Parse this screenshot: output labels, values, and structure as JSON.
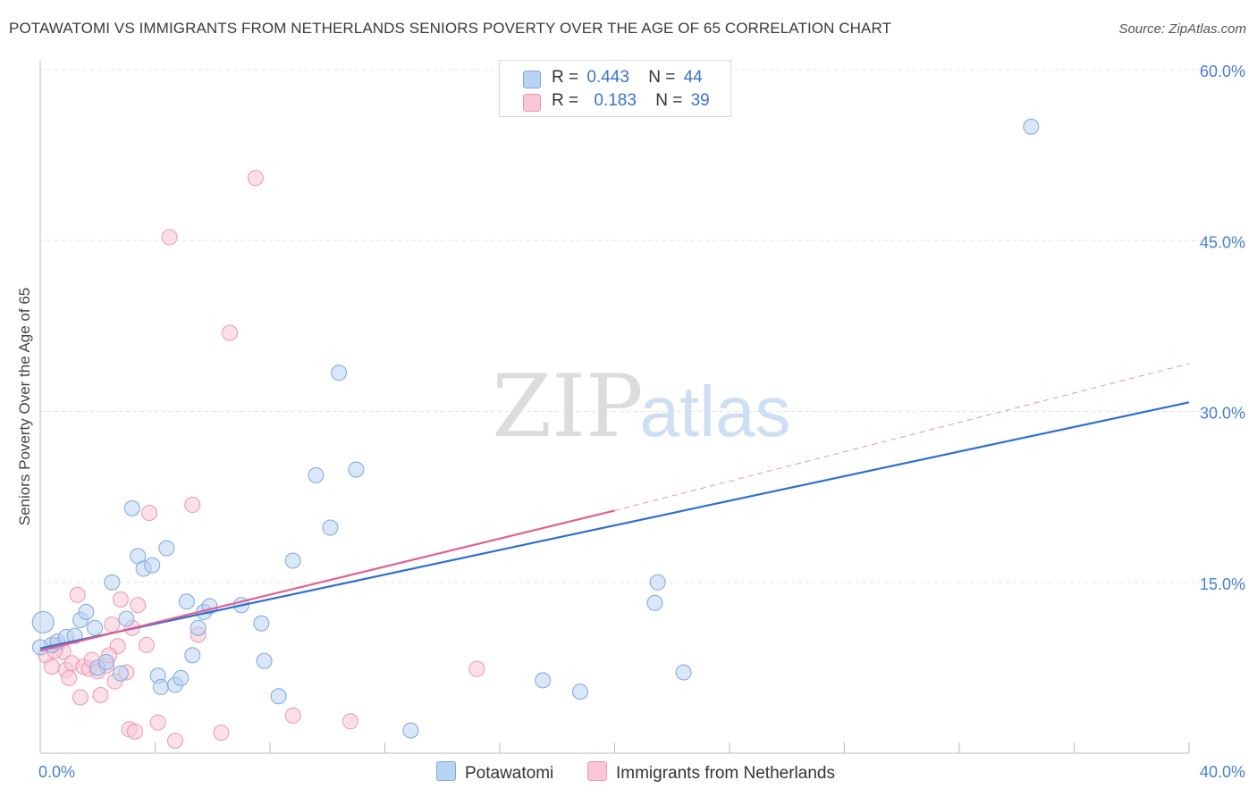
{
  "title": "POTAWATOMI VS IMMIGRANTS FROM NETHERLANDS SENIORS POVERTY OVER THE AGE OF 65 CORRELATION CHART",
  "source": "Source: ZipAtlas.com",
  "watermark": {
    "zip": "ZIP",
    "atlas": "atlas"
  },
  "legend": {
    "rows": [
      {
        "r_label": "R =",
        "r_value": "0.443",
        "n_label": "N =",
        "n_value": "44",
        "color": "#a8c8f0"
      },
      {
        "r_label": "R =",
        "r_value": "0.183",
        "n_label": "N =",
        "n_value": "39",
        "color": "#f7b8cc"
      }
    ]
  },
  "colors": {
    "series1_fill": "#b9d3f3",
    "series1_stroke": "#7fa8dd",
    "series1_line": "#2f6fd0",
    "series2_fill": "#f9c6d6",
    "series2_stroke": "#ee96b2",
    "series2_line": "#e0608e",
    "grid": "#e3e3e3",
    "tick_label": "#4a7fcf"
  },
  "chart_data": {
    "type": "scatter",
    "title": "POTAWATOMI VS IMMIGRANTS FROM NETHERLANDS SENIORS POVERTY OVER THE AGE OF 65 CORRELATION CHART",
    "xlabel": "",
    "ylabel": "Seniors Poverty Over the Age of 65",
    "xlim": [
      0,
      40
    ],
    "ylim": [
      0,
      60
    ],
    "x_tick_labels": [
      "0.0%",
      "40.0%"
    ],
    "y_ticks": [
      15,
      30,
      45,
      60
    ],
    "y_tick_labels": [
      "15.0%",
      "30.0%",
      "45.0%",
      "60.0%"
    ],
    "grid": true,
    "legend_position": "top-center",
    "series": [
      {
        "name": "Potawatomi",
        "points": [
          [
            0.1,
            11.5
          ],
          [
            0.4,
            9.5
          ],
          [
            0.6,
            9.8
          ],
          [
            0.9,
            10.2
          ],
          [
            1.2,
            10.3
          ],
          [
            1.4,
            11.7
          ],
          [
            1.6,
            12.4
          ],
          [
            1.9,
            11.0
          ],
          [
            2.0,
            7.5
          ],
          [
            2.3,
            8.0
          ],
          [
            2.5,
            15.0
          ],
          [
            2.8,
            7.0
          ],
          [
            3.0,
            11.8
          ],
          [
            3.2,
            21.5
          ],
          [
            3.4,
            17.3
          ],
          [
            3.6,
            16.2
          ],
          [
            3.9,
            16.5
          ],
          [
            4.1,
            6.8
          ],
          [
            4.2,
            5.8
          ],
          [
            4.4,
            18.0
          ],
          [
            4.7,
            6.0
          ],
          [
            4.9,
            6.6
          ],
          [
            5.1,
            13.3
          ],
          [
            5.3,
            8.6
          ],
          [
            5.5,
            11.0
          ],
          [
            5.7,
            12.4
          ],
          [
            5.9,
            12.9
          ],
          [
            7.0,
            13.0
          ],
          [
            7.7,
            11.4
          ],
          [
            7.8,
            8.1
          ],
          [
            8.3,
            5.0
          ],
          [
            8.8,
            16.9
          ],
          [
            9.6,
            24.4
          ],
          [
            10.1,
            19.8
          ],
          [
            10.4,
            33.4
          ],
          [
            11.0,
            24.9
          ],
          [
            12.9,
            2.0
          ],
          [
            17.5,
            6.4
          ],
          [
            18.8,
            5.4
          ],
          [
            21.4,
            13.2
          ],
          [
            21.5,
            15.0
          ],
          [
            22.4,
            7.1
          ],
          [
            34.5,
            55.0
          ],
          [
            0.0,
            9.3
          ]
        ],
        "trend": {
          "x": [
            0,
            40
          ],
          "y": [
            9.2,
            30.8
          ]
        }
      },
      {
        "name": "Immigrants from Netherlands",
        "points": [
          [
            0.2,
            8.6
          ],
          [
            0.4,
            7.6
          ],
          [
            0.6,
            9.5
          ],
          [
            0.8,
            8.9
          ],
          [
            0.9,
            7.3
          ],
          [
            1.0,
            6.6
          ],
          [
            1.1,
            7.9
          ],
          [
            1.3,
            13.9
          ],
          [
            1.4,
            4.9
          ],
          [
            1.5,
            7.6
          ],
          [
            1.7,
            7.4
          ],
          [
            1.8,
            8.2
          ],
          [
            2.0,
            7.2
          ],
          [
            2.1,
            5.1
          ],
          [
            2.3,
            7.7
          ],
          [
            2.5,
            11.3
          ],
          [
            2.6,
            6.3
          ],
          [
            2.7,
            9.4
          ],
          [
            2.8,
            13.5
          ],
          [
            3.0,
            7.1
          ],
          [
            3.1,
            2.1
          ],
          [
            3.3,
            1.9
          ],
          [
            3.4,
            13.0
          ],
          [
            3.7,
            9.5
          ],
          [
            3.8,
            21.1
          ],
          [
            4.1,
            2.7
          ],
          [
            4.5,
            45.3
          ],
          [
            4.7,
            1.1
          ],
          [
            5.3,
            21.8
          ],
          [
            5.5,
            10.4
          ],
          [
            6.3,
            1.8
          ],
          [
            6.6,
            36.9
          ],
          [
            7.5,
            50.5
          ],
          [
            8.8,
            3.3
          ],
          [
            10.8,
            2.8
          ],
          [
            15.2,
            7.4
          ],
          [
            0.5,
            9.0
          ],
          [
            2.4,
            8.6
          ],
          [
            3.2,
            11.0
          ]
        ],
        "trend": {
          "x": [
            0,
            20
          ],
          "y": [
            9.0,
            21.3
          ]
        },
        "trend_extension": {
          "x": [
            20,
            40
          ],
          "y": [
            21.3,
            34.2
          ]
        }
      }
    ]
  }
}
